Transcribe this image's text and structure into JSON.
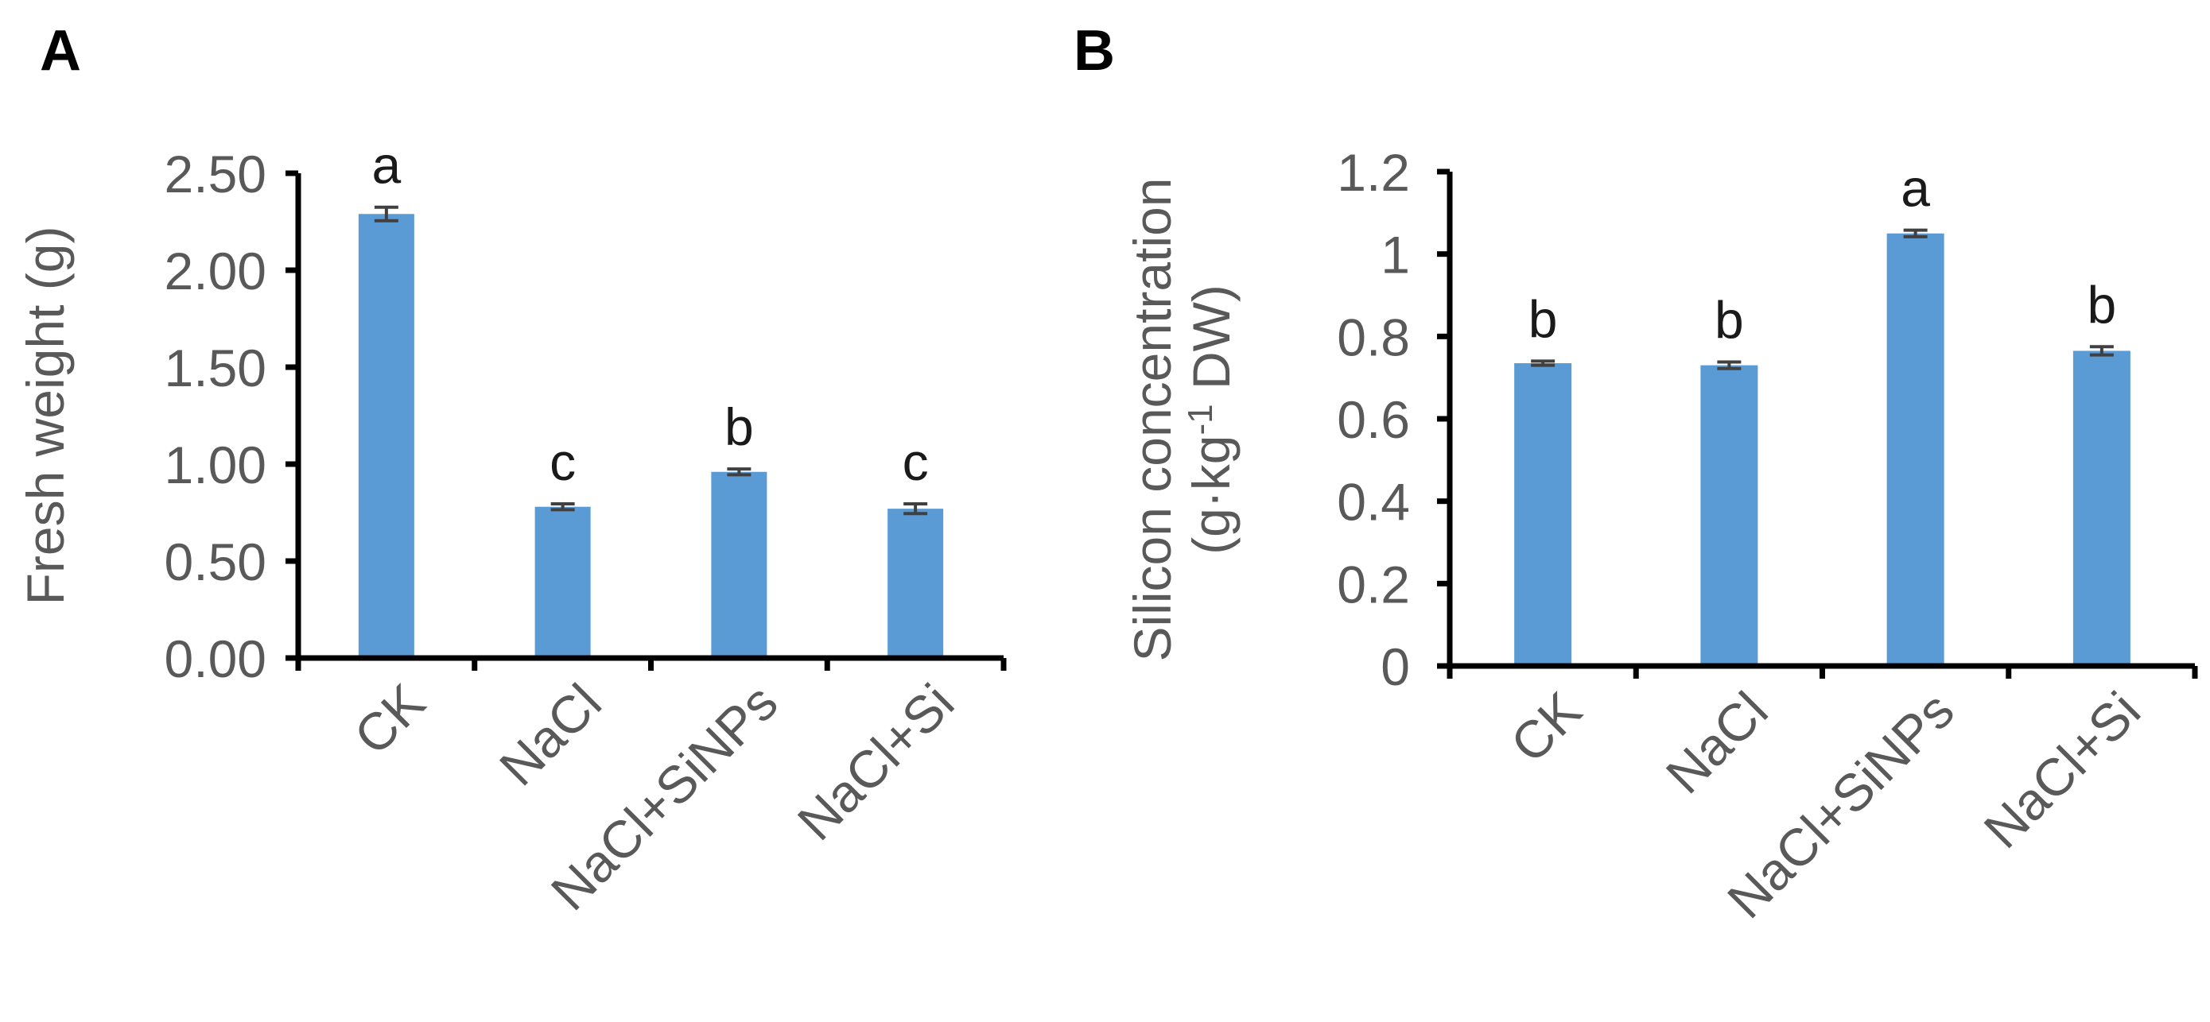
{
  "chart_data": [
    {
      "panel": "A",
      "type": "bar",
      "ylabel": "Fresh weight (g)",
      "ylim": [
        0,
        2.5
      ],
      "yticks": [
        "0.00",
        "0.50",
        "1.00",
        "1.50",
        "2.00",
        "2.50"
      ],
      "tick_values": [
        0,
        0.5,
        1,
        1.5,
        2,
        2.5
      ],
      "categories": [
        "CK",
        "NaCl",
        "NaCl+SiNPs",
        "NaCl+Si"
      ],
      "values": [
        2.29,
        0.78,
        0.96,
        0.77
      ],
      "errors": [
        0.035,
        0.015,
        0.015,
        0.025
      ],
      "significance": [
        "a",
        "c",
        "b",
        "c"
      ],
      "bar_color": "#5B9BD5"
    },
    {
      "panel": "B",
      "type": "bar",
      "ylabel_line1": "Silicon concentration",
      "ylabel_line2_prefix": "(g·kg",
      "ylabel_line2_sup": "-1",
      "ylabel_line2_suffix": " DW)",
      "ylim": [
        0,
        1.2
      ],
      "yticks": [
        "0",
        "0.2",
        "0.4",
        "0.6",
        "0.8",
        "1",
        "1.2"
      ],
      "tick_values": [
        0,
        0.2,
        0.4,
        0.6,
        0.8,
        1.0,
        1.2
      ],
      "categories": [
        "CK",
        "NaCl",
        "NaCl+SiNPs",
        "NaCl+Si"
      ],
      "values": [
        0.735,
        0.73,
        1.05,
        0.765
      ],
      "errors": [
        0.005,
        0.008,
        0.008,
        0.01
      ],
      "significance": [
        "b",
        "b",
        "a",
        "b"
      ],
      "bar_color": "#5B9BD5"
    }
  ]
}
